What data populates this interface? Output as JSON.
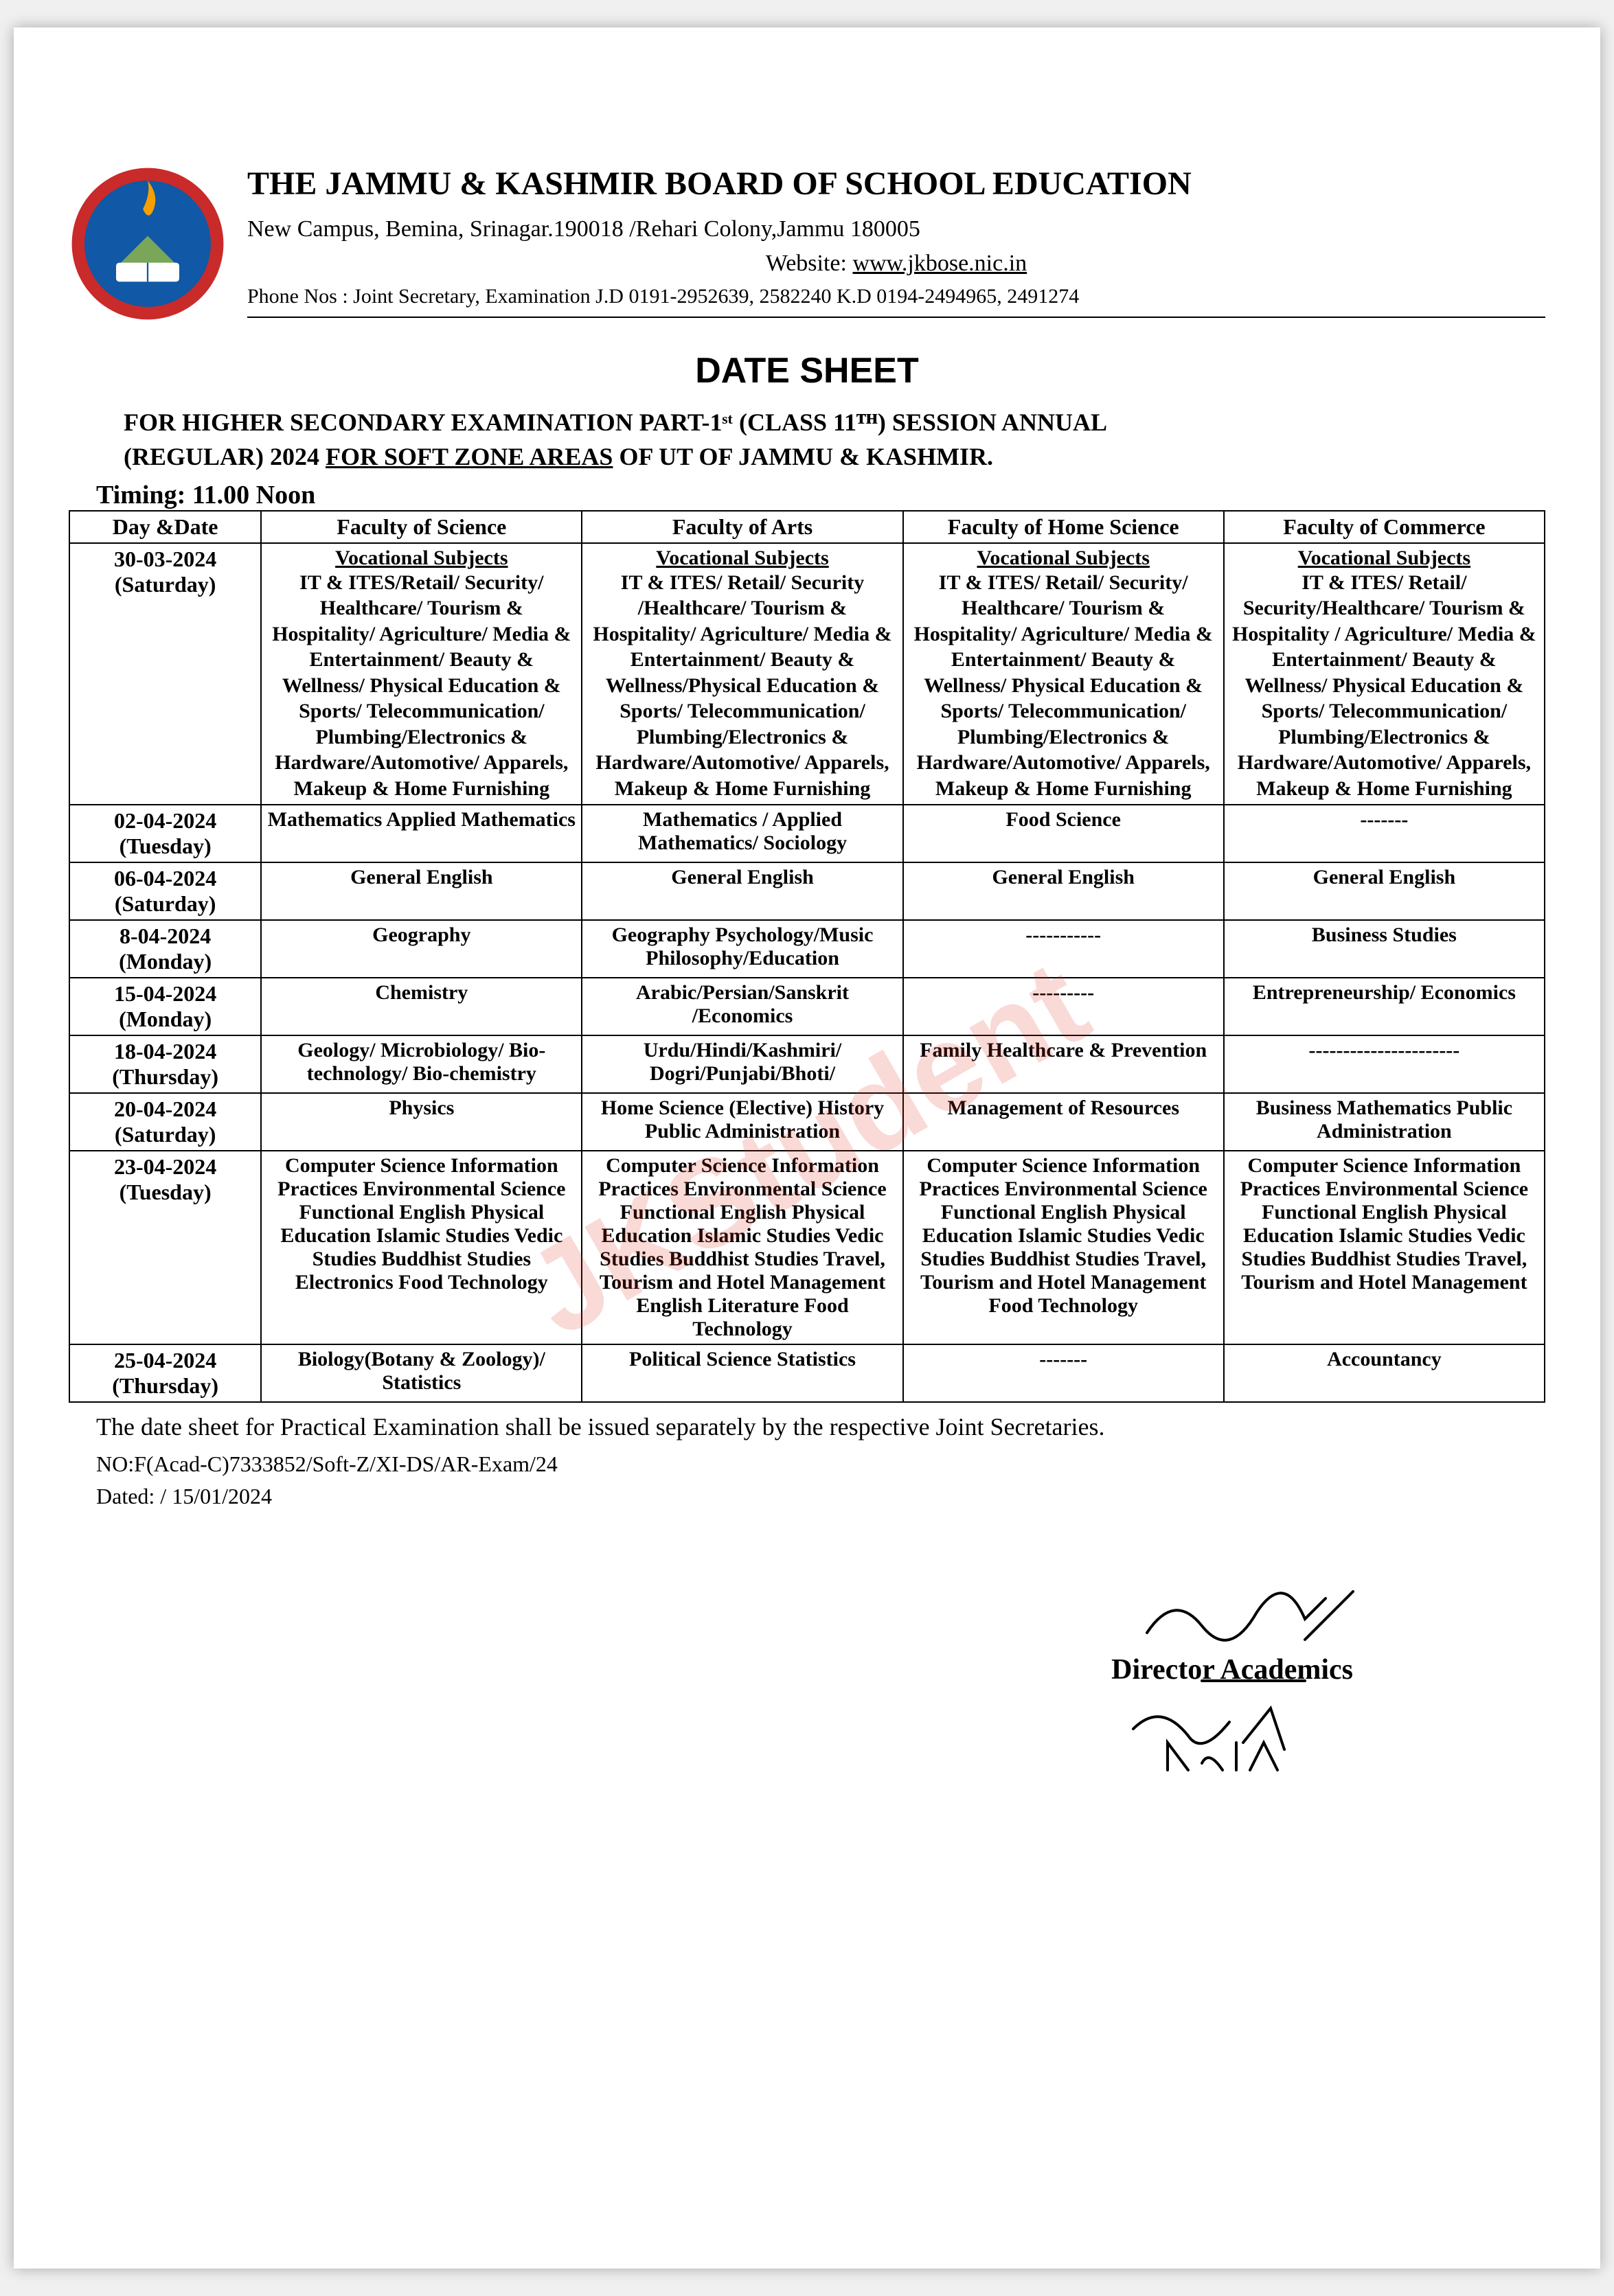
{
  "header": {
    "org_title": "THE JAMMU & KASHMIR BOARD OF SCHOOL EDUCATION",
    "address": "New Campus, Bemina, Srinagar.190018 /Rehari Colony,Jammu 180005",
    "website_label": "Website:",
    "website": "www.jkbose.nic.in",
    "phone": "Phone Nos : Joint Secretary, Examination J.D 0191-2952639, 2582240  K.D 0194-2494965, 2491274"
  },
  "sheet_title": "DATE SHEET",
  "exam_for_line1": "FOR HIGHER SECONDARY EXAMINATION PART-1ˢᵗ (CLASS 11ᵀᴴ) SESSION ANNUAL",
  "exam_for_line2_pre": "(REGULAR) 2024 ",
  "exam_for_line2_ul": "FOR SOFT ZONE AREAS",
  "exam_for_line2_post": " OF UT OF JAMMU & KASHMIR.",
  "timing": "Timing:  11.00 Noon",
  "columns": [
    "Day &Date",
    "Faculty of Science",
    "Faculty of Arts",
    "Faculty of Home Science",
    "Faculty of Commerce"
  ],
  "voc_head": "Vocational Subjects",
  "rows": [
    {
      "date": "30-03-2024 (Saturday)",
      "science": "IT & ITES/Retail/ Security/ Healthcare/ Tourism & Hospitality/ Agriculture/ Media & Entertainment/ Beauty & Wellness/ Physical Education & Sports/ Telecommunication/ Plumbing/Electronics & Hardware/Automotive/ Apparels, Makeup & Home Furnishing",
      "arts": "IT & ITES/ Retail/ Security /Healthcare/ Tourism & Hospitality/ Agriculture/ Media & Entertainment/ Beauty & Wellness/Physical Education & Sports/ Telecommunication/ Plumbing/Electronics & Hardware/Automotive/ Apparels, Makeup & Home Furnishing",
      "home": "IT & ITES/ Retail/ Security/ Healthcare/ Tourism & Hospitality/ Agriculture/ Media & Entertainment/ Beauty & Wellness/ Physical Education & Sports/ Telecommunication/ Plumbing/Electronics & Hardware/Automotive/ Apparels, Makeup & Home Furnishing",
      "commerce": "IT & ITES/ Retail/ Security/Healthcare/ Tourism & Hospitality / Agriculture/ Media & Entertainment/ Beauty & Wellness/ Physical Education & Sports/ Telecommunication/ Plumbing/Electronics & Hardware/Automotive/ Apparels, Makeup & Home Furnishing",
      "voc": true
    },
    {
      "date": "02-04-2024 (Tuesday)",
      "science": "Mathematics Applied Mathematics",
      "arts": "Mathematics / Applied Mathematics/ Sociology",
      "home": "Food Science",
      "commerce": "-------"
    },
    {
      "date": "06-04-2024 (Saturday)",
      "science": "General English",
      "arts": "General English",
      "home": "General English",
      "commerce": "General English"
    },
    {
      "date": "8-04-2024 (Monday)",
      "science": "Geography",
      "arts": "Geography Psychology/Music Philosophy/Education",
      "home": "-----------",
      "commerce": "Business Studies"
    },
    {
      "date": "15-04-2024 (Monday)",
      "science": "Chemistry",
      "arts": "Arabic/Persian/Sanskrit /Economics",
      "home": "---------",
      "commerce": "Entrepreneurship/ Economics"
    },
    {
      "date": "18-04-2024 (Thursday)",
      "science": "Geology/ Microbiology/ Bio-technology/ Bio-chemistry",
      "arts": "Urdu/Hindi/Kashmiri/ Dogri/Punjabi/Bhoti/",
      "home": "Family Healthcare & Prevention",
      "commerce": "----------------------"
    },
    {
      "date": "20-04-2024 (Saturday)",
      "science": "Physics",
      "arts": "Home Science (Elective) History Public Administration",
      "home": "Management of Resources",
      "commerce": "Business Mathematics Public Administration"
    },
    {
      "date": "23-04-2024 (Tuesday)",
      "science": "Computer Science Information Practices Environmental Science Functional English Physical Education Islamic Studies Vedic Studies Buddhist Studies Electronics Food Technology",
      "arts": "Computer Science Information Practices Environmental Science Functional English Physical Education Islamic Studies Vedic Studies Buddhist Studies Travel, Tourism and Hotel Management English Literature Food Technology",
      "home": "Computer Science Information Practices Environmental Science Functional English Physical Education Islamic Studies Vedic Studies Buddhist Studies Travel, Tourism and Hotel Management Food Technology",
      "commerce": "Computer Science Information Practices Environmental Science Functional English Physical Education Islamic Studies Vedic Studies Buddhist Studies Travel, Tourism and Hotel Management"
    },
    {
      "date": "25-04-2024 (Thursday)",
      "science": "Biology(Botany & Zoology)/ Statistics",
      "arts": "Political Science Statistics",
      "home": "-------",
      "commerce": "Accountancy"
    }
  ],
  "footer_note": "The date sheet for Practical Examination shall be issued separately by the respective Joint Secretaries.",
  "ref_no": "NO:F(Acad-C)7333852/Soft-Z/XI-DS/AR-Exam/24",
  "dated": "Dated: / 15/01/2024",
  "sign_label": "Director Academics",
  "watermark": "JKStudent",
  "colors": {
    "text": "#000000",
    "page_bg": "#ffffff",
    "watermark": "rgba(220,50,30,0.18)",
    "logo_ring": "#c92a2a",
    "logo_inner": "#1158a6",
    "logo_flame": "#f59f00",
    "logo_book": "#ffffff"
  }
}
